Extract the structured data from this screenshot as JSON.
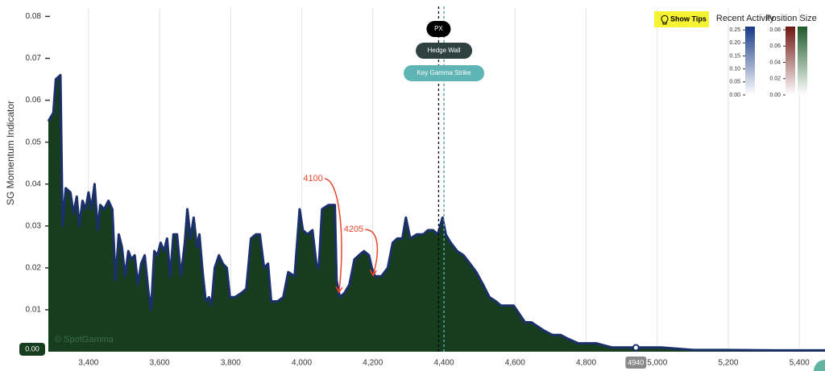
{
  "chart_data": {
    "type": "area",
    "y_label": "SG Momentum Indicator",
    "watermark": "© SpotGamma",
    "line_color": "#1b2f6b",
    "fill_color": "#173d1f",
    "x": [
      3287,
      3301,
      3308,
      3321,
      3327,
      3336,
      3349,
      3358,
      3367,
      3374,
      3383,
      3392,
      3400,
      3408,
      3417,
      3426,
      3433,
      3444,
      3456,
      3467,
      3476,
      3485,
      3494,
      3503,
      3512,
      3521,
      3530,
      3539,
      3548,
      3558,
      3569,
      3576,
      3585,
      3594,
      3603,
      3612,
      3621,
      3630,
      3639,
      3649,
      3660,
      3671,
      3678,
      3687,
      3696,
      3705,
      3712,
      3721,
      3730,
      3739,
      3746,
      3755,
      3767,
      3778,
      3789,
      3798,
      3812,
      3830,
      3844,
      3857,
      3871,
      3882,
      3894,
      3905,
      3914,
      3932,
      3948,
      3962,
      3980,
      3994,
      4003,
      4016,
      4030,
      4041,
      4048,
      4057,
      4075,
      4093,
      4098,
      4107,
      4120,
      4134,
      4148,
      4161,
      4175,
      4189,
      4197,
      4206,
      4224,
      4242,
      4256,
      4269,
      4283,
      4293,
      4305,
      4324,
      4342,
      4355,
      4369,
      4383,
      4396,
      4405,
      4419,
      4437,
      4455,
      4473,
      4491,
      4510,
      4528,
      4546,
      4560,
      4578,
      4596,
      4612,
      4628,
      4646,
      4664,
      4682,
      4705,
      4728,
      4751,
      4778,
      4828,
      4873,
      4940,
      5011,
      5102,
      5193,
      5329,
      5472
    ],
    "values": [
      0.055,
      0.057,
      0.065,
      0.066,
      0.03,
      0.039,
      0.038,
      0.033,
      0.037,
      0.03,
      0.036,
      0.034,
      0.038,
      0.034,
      0.04,
      0.029,
      0.035,
      0.034,
      0.036,
      0.034,
      0.017,
      0.028,
      0.025,
      0.018,
      0.024,
      0.022,
      0.023,
      0.016,
      0.021,
      0.023,
      0.014,
      0.01,
      0.024,
      0.023,
      0.026,
      0.024,
      0.027,
      0.018,
      0.028,
      0.028,
      0.018,
      0.026,
      0.034,
      0.027,
      0.032,
      0.025,
      0.028,
      0.019,
      0.012,
      0.013,
      0.011,
      0.02,
      0.023,
      0.021,
      0.02,
      0.013,
      0.013,
      0.014,
      0.015,
      0.027,
      0.028,
      0.028,
      0.02,
      0.021,
      0.012,
      0.012,
      0.013,
      0.019,
      0.018,
      0.034,
      0.029,
      0.028,
      0.029,
      0.021,
      0.02,
      0.034,
      0.035,
      0.035,
      0.017,
      0.013,
      0.014,
      0.016,
      0.022,
      0.023,
      0.024,
      0.023,
      0.02,
      0.018,
      0.018,
      0.02,
      0.026,
      0.027,
      0.027,
      0.032,
      0.027,
      0.028,
      0.028,
      0.029,
      0.029,
      0.028,
      0.032,
      0.028,
      0.026,
      0.024,
      0.023,
      0.021,
      0.019,
      0.016,
      0.013,
      0.012,
      0.011,
      0.011,
      0.011,
      0.009,
      0.007,
      0.007,
      0.006,
      0.005,
      0.004,
      0.004,
      0.003,
      0.002,
      0.002,
      0.001,
      0.001,
      0.001,
      0.0004,
      0.0004,
      0.0003,
      0.0003
    ],
    "xlim": [
      3287,
      5472
    ],
    "ylim": [
      0,
      0.082
    ],
    "xticks": [
      {
        "value": 3400,
        "label": "3,400"
      },
      {
        "value": 3600,
        "label": "3,600"
      },
      {
        "value": 3800,
        "label": "3,800"
      },
      {
        "value": 4000,
        "label": "4,000"
      },
      {
        "value": 4200,
        "label": "4,200"
      },
      {
        "value": 4400,
        "label": "4,400"
      },
      {
        "value": 4600,
        "label": "4,600"
      },
      {
        "value": 4800,
        "label": "4,800"
      },
      {
        "value": 5000,
        "label": "5,000"
      },
      {
        "value": 5200,
        "label": "5,200"
      },
      {
        "value": 5400,
        "label": "5,400"
      }
    ],
    "yticks": [
      0.01,
      0.02,
      0.03,
      0.04,
      0.05,
      0.06,
      0.07,
      0.08
    ],
    "grid": true,
    "reference_lines": [
      {
        "label": "PX",
        "value": 4385,
        "color": "#000000"
      },
      {
        "label": "Hedge Wall",
        "value": 4400,
        "color": "#2f4040"
      },
      {
        "label": "Key Gamma Strike",
        "value": 4400,
        "color": "#5fb5b5"
      }
    ],
    "annotations": [
      {
        "label": "4100",
        "x": 4105,
        "y": 0.014,
        "color": "#e8452c"
      },
      {
        "label": "4205",
        "x": 4201,
        "y": 0.018,
        "color": "#e8452c"
      }
    ],
    "cursor": {
      "x": {
        "value": 4940,
        "label": "4940"
      },
      "y": {
        "value": 0,
        "label": "0.00"
      }
    },
    "button": "Show Tips",
    "colorbars": [
      {
        "title": "Recent Activity",
        "lim": [
          0,
          0.263
        ],
        "gradients": [
          [
            "#ffffff",
            "#173a86"
          ]
        ],
        "ticks": [
          {
            "value": 0,
            "label": "0.00"
          },
          0.05,
          {
            "value": 0.1,
            "label": "0.10"
          },
          0.15,
          {
            "value": 0.2,
            "label": "0.20"
          },
          0.25
        ]
      },
      {
        "title": "Position Size",
        "lim": [
          0,
          0.084
        ],
        "gradients": [
          [
            "#ffffff",
            "#6e1410"
          ],
          [
            "#ffffff",
            "#1d5a29"
          ]
        ],
        "ticks": [
          {
            "value": 0,
            "label": "0.00"
          },
          0.02,
          0.04,
          0.06,
          0.08
        ]
      }
    ]
  }
}
